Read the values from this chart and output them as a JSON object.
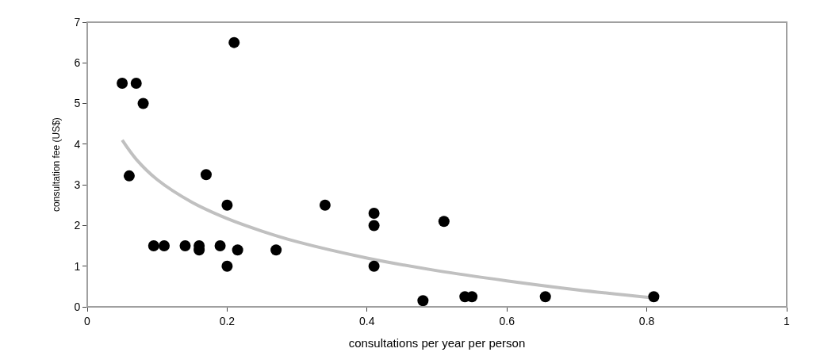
{
  "chart_data": {
    "type": "scatter",
    "xlabel": "consultations per year per person",
    "ylabel": "consultation fee (US$)",
    "xlim": [
      0,
      1
    ],
    "ylim": [
      0,
      7
    ],
    "xticks": [
      0,
      0.2,
      0.4,
      0.6,
      0.8,
      1
    ],
    "yticks": [
      0,
      1,
      2,
      3,
      4,
      5,
      6,
      7
    ],
    "legend": false,
    "marker": "circle",
    "series": [
      {
        "color": "#000000",
        "x": [
          0.05,
          0.07,
          0.08,
          0.21,
          0.06,
          0.17,
          0.2,
          0.34,
          0.41,
          0.41,
          0.51,
          0.095,
          0.11,
          0.14,
          0.16,
          0.16,
          0.19,
          0.215,
          0.27,
          0.2,
          0.41,
          0.48,
          0.54,
          0.55,
          0.655,
          0.81
        ],
        "values": [
          5.5,
          5.5,
          5.0,
          6.5,
          3.22,
          3.25,
          2.5,
          2.5,
          2.3,
          2.0,
          2.1,
          1.5,
          1.5,
          1.5,
          1.4,
          1.5,
          1.5,
          1.4,
          1.4,
          1.0,
          1.0,
          0.15,
          0.25,
          0.25,
          0.25,
          0.25
        ]
      },
      {
        "type": "line",
        "color": "#c0c0c0",
        "marker": "none",
        "x": [
          0.05,
          0.07,
          0.1,
          0.15,
          0.2,
          0.25,
          0.3,
          0.4,
          0.5,
          0.6,
          0.7,
          0.81
        ],
        "values": [
          4.1,
          3.63,
          3.13,
          2.57,
          2.17,
          1.86,
          1.6,
          1.2,
          0.89,
          0.64,
          0.42,
          0.22
        ]
      }
    ]
  }
}
